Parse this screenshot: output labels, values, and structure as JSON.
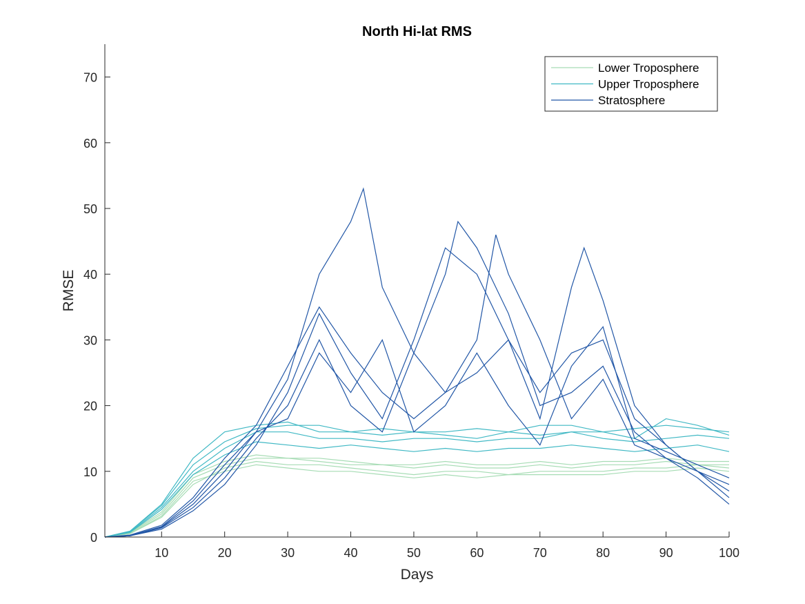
{
  "chart_data": {
    "type": "line",
    "title": "North Hi-lat RMS",
    "xlabel": "Days",
    "ylabel": "RMSE",
    "xlim": [
      1,
      100
    ],
    "ylim": [
      0,
      75
    ],
    "xticks": [
      10,
      20,
      30,
      40,
      50,
      60,
      70,
      80,
      90,
      100
    ],
    "yticks": [
      0,
      10,
      20,
      30,
      40,
      50,
      60,
      70
    ],
    "grid": false,
    "legend_position": "top-right",
    "legend": [
      {
        "name": "Lower Troposphere",
        "color": "#a6dcb4"
      },
      {
        "name": "Upper Troposphere",
        "color": "#3fb8c4"
      },
      {
        "name": "Stratosphere",
        "color": "#2156a6"
      }
    ],
    "series": [
      {
        "group": "Lower Troposphere",
        "name": "Lower Troposphere",
        "color": "#a6dcb4",
        "x": [
          1,
          5,
          10,
          15,
          20,
          25,
          30,
          35,
          40,
          45,
          50,
          55,
          60,
          65,
          70,
          75,
          80,
          85,
          90,
          95,
          100
        ],
        "y": [
          0,
          0.5,
          3,
          8,
          10.5,
          11.5,
          11,
          11,
          10.5,
          10,
          9.5,
          10,
          10,
          9.5,
          10,
          10,
          10,
          10.5,
          10.5,
          11,
          10.5
        ]
      },
      {
        "group": "Lower Troposphere",
        "color": "#a6dcb4",
        "x": [
          1,
          5,
          10,
          15,
          20,
          25,
          30,
          35,
          40,
          45,
          50,
          55,
          60,
          65,
          70,
          75,
          80,
          85,
          90,
          95,
          100
        ],
        "y": [
          0,
          0.6,
          3.5,
          9,
          11,
          12,
          12,
          11.5,
          11,
          11,
          10.5,
          11,
          10.5,
          10.5,
          11,
          10.5,
          11,
          11,
          11.5,
          11,
          11
        ]
      },
      {
        "group": "Lower Troposphere",
        "color": "#a6dcb4",
        "x": [
          1,
          5,
          10,
          15,
          20,
          25,
          30,
          35,
          40,
          45,
          50,
          55,
          60,
          65,
          70,
          75,
          80,
          85,
          90,
          95,
          100
        ],
        "y": [
          0,
          0.5,
          3.2,
          8.5,
          10,
          11,
          10.5,
          10,
          10,
          9.5,
          9,
          9.5,
          9,
          9.5,
          9.5,
          9.5,
          9.5,
          10,
          10,
          10.5,
          10
        ]
      },
      {
        "group": "Lower Troposphere",
        "color": "#a6dcb4",
        "x": [
          1,
          5,
          10,
          15,
          20,
          25,
          30,
          35,
          40,
          45,
          50,
          55,
          60,
          65,
          70,
          75,
          80,
          85,
          90,
          95,
          100
        ],
        "y": [
          0,
          0.7,
          3.8,
          9.5,
          11.5,
          12.5,
          12,
          12,
          11.5,
          11,
          11,
          11.5,
          11,
          11,
          11.5,
          11,
          11.5,
          11.5,
          12,
          11.5,
          11.5
        ]
      },
      {
        "group": "Upper Troposphere",
        "name": "Upper Troposphere",
        "color": "#3fb8c4",
        "x": [
          1,
          5,
          10,
          15,
          20,
          25,
          30,
          35,
          40,
          45,
          50,
          55,
          60,
          65,
          70,
          75,
          80,
          85,
          90,
          95,
          100
        ],
        "y": [
          0,
          0.8,
          4.5,
          10,
          13.5,
          16,
          16,
          15,
          15,
          14.5,
          15,
          15,
          14.5,
          15,
          15,
          16,
          15,
          14.5,
          15,
          15.5,
          15
        ]
      },
      {
        "group": "Upper Troposphere",
        "color": "#3fb8c4",
        "x": [
          1,
          5,
          10,
          15,
          20,
          25,
          30,
          35,
          40,
          45,
          50,
          55,
          60,
          65,
          70,
          75,
          80,
          85,
          90,
          95,
          100
        ],
        "y": [
          0,
          0.9,
          5,
          12,
          16,
          17,
          17.5,
          16,
          16,
          16.5,
          16,
          16,
          16.5,
          16,
          17,
          17,
          16,
          16.5,
          17,
          16.5,
          16
        ]
      },
      {
        "group": "Upper Troposphere",
        "color": "#3fb8c4",
        "x": [
          1,
          5,
          10,
          15,
          20,
          25,
          30,
          35,
          40,
          45,
          50,
          55,
          60,
          65,
          70,
          75,
          80,
          85,
          90,
          95,
          100
        ],
        "y": [
          0,
          0.7,
          4.2,
          9.5,
          12.5,
          14.5,
          14,
          13.5,
          14,
          13.5,
          13,
          13.5,
          13,
          13.5,
          13.5,
          14,
          13.5,
          13,
          13.5,
          14,
          13
        ]
      },
      {
        "group": "Upper Troposphere",
        "color": "#3fb8c4",
        "x": [
          1,
          5,
          10,
          15,
          20,
          25,
          30,
          35,
          40,
          45,
          50,
          55,
          60,
          65,
          70,
          75,
          80,
          85,
          90,
          95,
          100
        ],
        "y": [
          0,
          0.9,
          4.8,
          11,
          14.5,
          16.5,
          17,
          17,
          16,
          15.5,
          16,
          15.5,
          15,
          16,
          15.5,
          16,
          16,
          15,
          18,
          17,
          15.5
        ]
      },
      {
        "group": "Stratosphere",
        "name": "Stratosphere",
        "color": "#2156a6",
        "x": [
          1,
          5,
          10,
          15,
          20,
          25,
          30,
          35,
          40,
          42,
          45,
          50,
          55,
          60,
          65,
          70,
          75,
          80,
          85,
          90,
          95,
          100
        ],
        "y": [
          0,
          0.2,
          1.5,
          5,
          10,
          16,
          24,
          40,
          48,
          53,
          38,
          28,
          22,
          25,
          30,
          22,
          28,
          30,
          18,
          14,
          10,
          7
        ]
      },
      {
        "group": "Stratosphere",
        "color": "#2156a6",
        "x": [
          1,
          5,
          10,
          15,
          20,
          25,
          30,
          35,
          40,
          45,
          50,
          55,
          60,
          65,
          70,
          75,
          77,
          80,
          85,
          90,
          95,
          100
        ],
        "y": [
          0,
          0.2,
          1.2,
          4,
          8,
          14,
          22,
          34,
          25,
          18,
          30,
          44,
          40,
          30,
          18,
          38,
          44,
          36,
          20,
          14,
          10,
          6
        ]
      },
      {
        "group": "Stratosphere",
        "color": "#2156a6",
        "x": [
          1,
          5,
          10,
          15,
          20,
          25,
          30,
          35,
          40,
          45,
          50,
          55,
          57,
          60,
          65,
          70,
          75,
          80,
          85,
          90,
          95,
          100
        ],
        "y": [
          0,
          0.2,
          1.4,
          4.5,
          9,
          15,
          20,
          30,
          20,
          16,
          28,
          40,
          48,
          44,
          34,
          20,
          22,
          26,
          16,
          12,
          9,
          5
        ]
      },
      {
        "group": "Stratosphere",
        "color": "#2156a6",
        "x": [
          1,
          5,
          10,
          15,
          20,
          25,
          30,
          35,
          40,
          45,
          50,
          55,
          60,
          63,
          65,
          70,
          75,
          80,
          85,
          90,
          95,
          100
        ],
        "y": [
          0,
          0.3,
          1.8,
          6,
          12,
          17,
          26,
          35,
          28,
          22,
          18,
          22,
          30,
          46,
          40,
          30,
          18,
          24,
          14,
          12,
          10,
          8
        ]
      },
      {
        "group": "Stratosphere",
        "color": "#2156a6",
        "x": [
          1,
          5,
          10,
          15,
          20,
          25,
          30,
          35,
          40,
          45,
          50,
          55,
          60,
          65,
          70,
          75,
          80,
          85,
          90,
          95,
          100
        ],
        "y": [
          0,
          0.2,
          1.6,
          5.5,
          11,
          16,
          18,
          28,
          22,
          30,
          16,
          20,
          28,
          20,
          14,
          26,
          32,
          15,
          13,
          11,
          9
        ]
      }
    ]
  }
}
